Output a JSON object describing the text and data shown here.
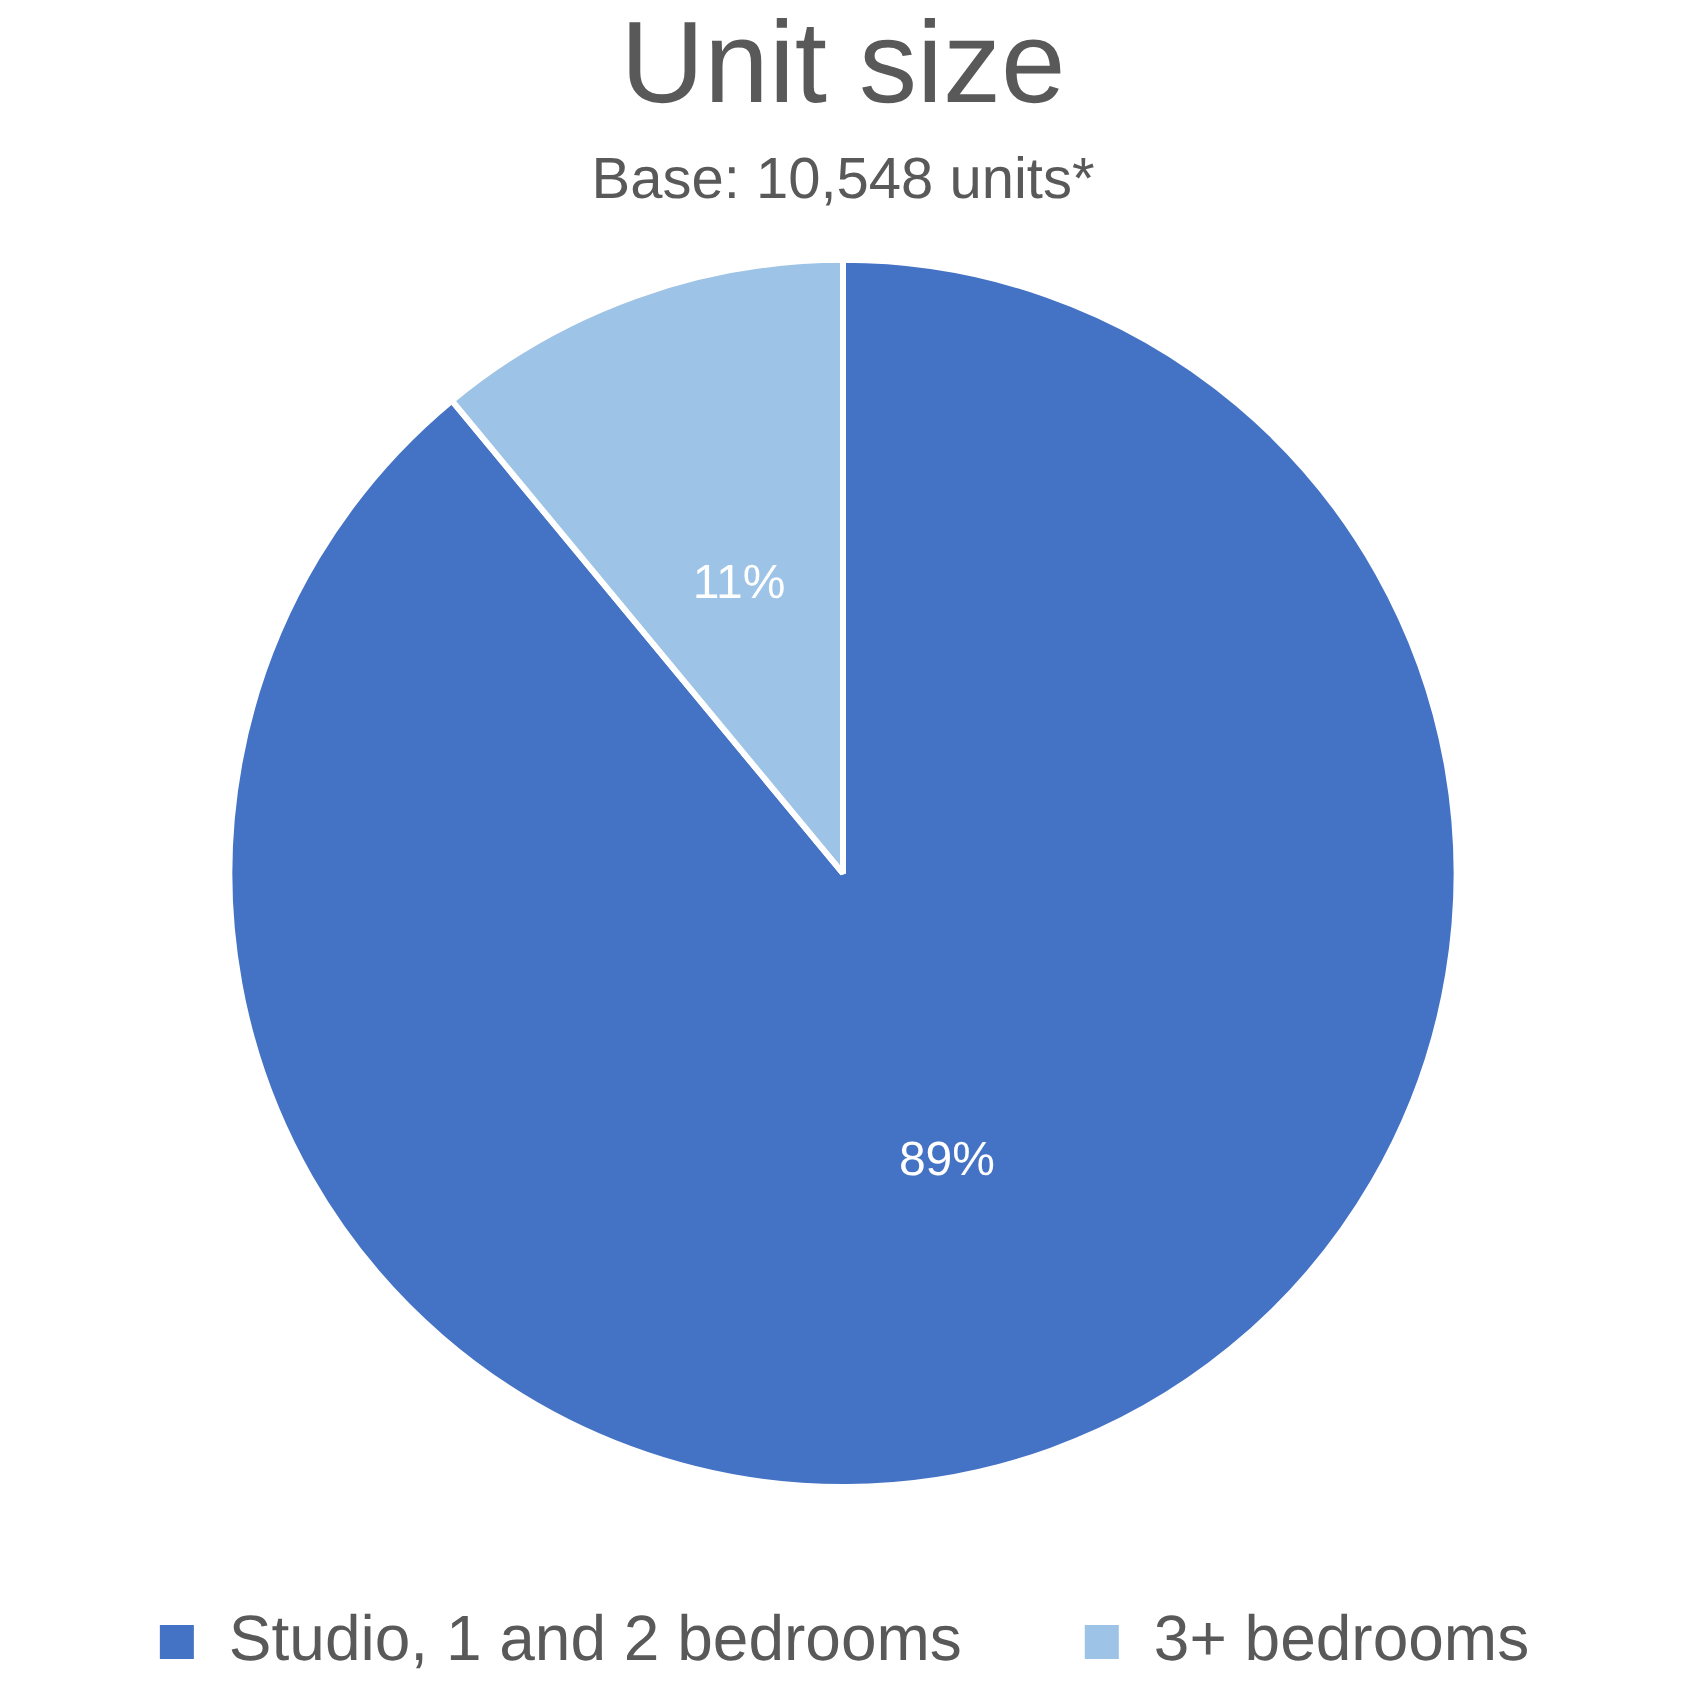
{
  "chart_data": {
    "type": "pie",
    "title": "Unit size",
    "subtitle": "Base: 10,548 units*",
    "categories": [
      "Studio, 1 and 2 bedrooms",
      "3+ bedrooms"
    ],
    "values": [
      89,
      11
    ],
    "colors": [
      "#4472c4",
      "#9dc3e6"
    ],
    "value_labels": [
      "89%",
      "11%"
    ],
    "legend": "bottom"
  }
}
